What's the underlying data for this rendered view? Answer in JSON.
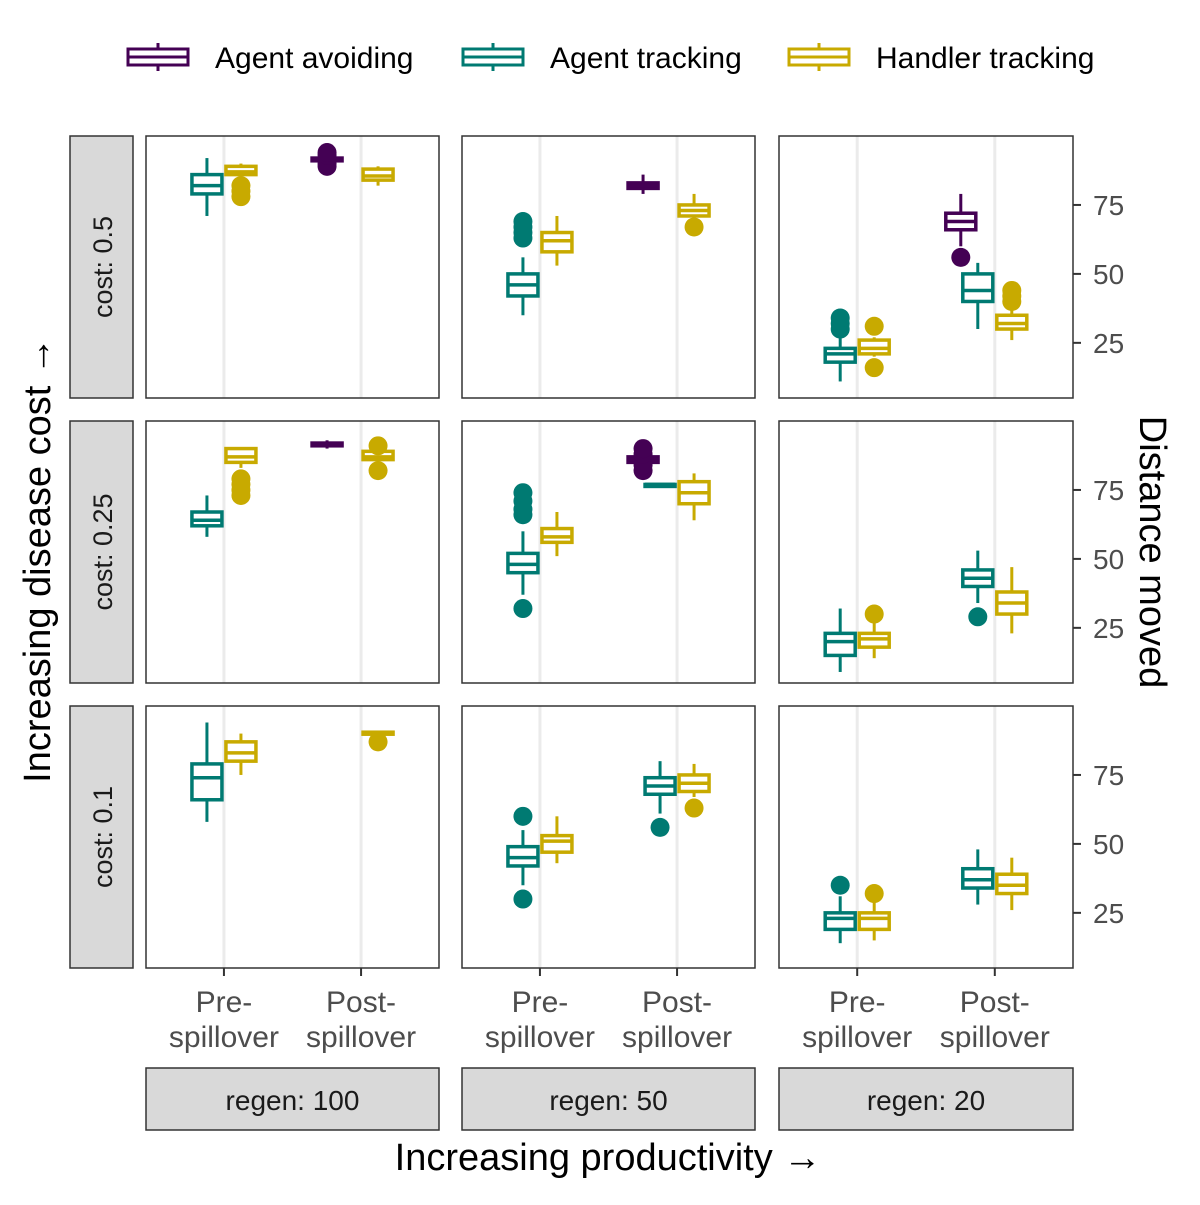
{
  "chart_data": {
    "type": "box",
    "layout": "3x3 facet grid",
    "legend": {
      "position": "top",
      "entries": [
        {
          "name": "Agent avoiding",
          "color": "#440154"
        },
        {
          "name": "Agent tracking",
          "color": "#007a72"
        },
        {
          "name": "Handler tracking",
          "color": "#c8aa00"
        }
      ]
    },
    "xlabel": "Increasing productivity →",
    "ylabel_left": "Increasing disease cost →",
    "ylabel_right": "Distance moved",
    "x_categories": [
      "Pre-\nspillover",
      "Post-\nspillover"
    ],
    "y_range": [
      5,
      100
    ],
    "y_ticks": [
      25,
      50,
      75
    ],
    "grid": "vertical major lines only",
    "col_facets": [
      "regen: 100",
      "regen: 50",
      "regen: 20"
    ],
    "row_facets": [
      "cost: 0.5",
      "cost: 0.25",
      "cost: 0.1"
    ],
    "panels": [
      {
        "row": "cost: 0.5",
        "col": "regen: 100",
        "boxes": [
          {
            "x": "Pre-\nspillover",
            "series": "Agent tracking",
            "min": 71,
            "q1": 79,
            "median": 82,
            "q3": 86,
            "max": 92,
            "outliers": []
          },
          {
            "x": "Pre-\nspillover",
            "series": "Handler tracking",
            "min": 84,
            "q1": 86,
            "median": 87,
            "q3": 89,
            "max": 90,
            "outliers": [
              78,
              80,
              82
            ]
          },
          {
            "x": "Post-\nspillover",
            "series": "Agent avoiding",
            "min": 90,
            "q1": 91,
            "median": 91.5,
            "q3": 92,
            "max": 93,
            "outliers": [
              89,
              90,
              93,
              94
            ]
          },
          {
            "x": "Post-\nspillover",
            "series": "Handler tracking",
            "min": 82,
            "q1": 84,
            "median": 85.5,
            "q3": 88,
            "max": 89,
            "outliers": []
          }
        ]
      },
      {
        "row": "cost: 0.5",
        "col": "regen: 50",
        "boxes": [
          {
            "x": "Pre-\nspillover",
            "series": "Agent tracking",
            "min": 35,
            "q1": 42,
            "median": 46,
            "q3": 50,
            "max": 56,
            "outliers": [
              63,
              65,
              67,
              69
            ]
          },
          {
            "x": "Pre-\nspillover",
            "series": "Handler tracking",
            "min": 53,
            "q1": 58,
            "median": 62,
            "q3": 65,
            "max": 71,
            "outliers": []
          },
          {
            "x": "Post-\nspillover",
            "series": "Agent avoiding",
            "min": 79,
            "q1": 81,
            "median": 82,
            "q3": 83,
            "max": 86,
            "outliers": []
          },
          {
            "x": "Post-\nspillover",
            "series": "Handler tracking",
            "min": 69,
            "q1": 71,
            "median": 73,
            "q3": 75,
            "max": 79,
            "outliers": [
              67
            ]
          }
        ]
      },
      {
        "row": "cost: 0.5",
        "col": "regen: 20",
        "boxes": [
          {
            "x": "Pre-\nspillover",
            "series": "Agent tracking",
            "min": 11,
            "q1": 18,
            "median": 21,
            "q3": 23,
            "max": 28,
            "outliers": [
              30,
              32,
              34
            ]
          },
          {
            "x": "Pre-\nspillover",
            "series": "Handler tracking",
            "min": 20,
            "q1": 21,
            "median": 23,
            "q3": 26,
            "max": 27,
            "outliers": [
              16,
              31
            ]
          },
          {
            "x": "Post-\nspillover",
            "series": "Agent avoiding",
            "min": 60,
            "q1": 66,
            "median": 69,
            "q3": 72,
            "max": 79,
            "outliers": [
              56
            ]
          },
          {
            "x": "Post-\nspillover",
            "series": "Agent tracking",
            "min": 30,
            "q1": 40,
            "median": 44,
            "q3": 50,
            "max": 54,
            "outliers": []
          },
          {
            "x": "Post-\nspillover",
            "series": "Handler tracking",
            "min": 26,
            "q1": 30,
            "median": 32,
            "q3": 35,
            "max": 38,
            "outliers": [
              40,
              42,
              44
            ]
          }
        ]
      },
      {
        "row": "cost: 0.25",
        "col": "regen: 100",
        "boxes": [
          {
            "x": "Pre-\nspillover",
            "series": "Agent tracking",
            "min": 58,
            "q1": 62,
            "median": 64,
            "q3": 67,
            "max": 73,
            "outliers": []
          },
          {
            "x": "Pre-\nspillover",
            "series": "Handler tracking",
            "min": 83,
            "q1": 85,
            "median": 87,
            "q3": 90,
            "max": 90,
            "outliers": [
              73,
              75,
              77,
              79
            ]
          },
          {
            "x": "Post-\nspillover",
            "series": "Agent avoiding",
            "min": 90,
            "q1": 91,
            "median": 91.5,
            "q3": 92,
            "max": 93,
            "outliers": []
          },
          {
            "x": "Post-\nspillover",
            "series": "Handler tracking",
            "min": 84,
            "q1": 86,
            "median": 87,
            "q3": 89,
            "max": 90,
            "outliers": [
              82,
              91
            ]
          }
        ]
      },
      {
        "row": "cost: 0.25",
        "col": "regen: 50",
        "boxes": [
          {
            "x": "Pre-\nspillover",
            "series": "Agent tracking",
            "min": 37,
            "q1": 45,
            "median": 48,
            "q3": 52,
            "max": 60,
            "outliers": [
              32,
              66,
              68,
              71,
              74
            ]
          },
          {
            "x": "Pre-\nspillover",
            "series": "Handler tracking",
            "min": 51,
            "q1": 56,
            "median": 58,
            "q3": 61,
            "max": 67,
            "outliers": []
          },
          {
            "x": "Post-\nspillover",
            "series": "Agent avoiding",
            "min": 84,
            "q1": 85,
            "median": 86,
            "q3": 87,
            "max": 88,
            "outliers": [
              82,
              84,
              88,
              90
            ]
          },
          {
            "x": "Post-\nspillover",
            "series": "Agent tracking",
            "min": 77,
            "q1": 77,
            "median": 77,
            "q3": 77,
            "max": 77,
            "outliers": []
          },
          {
            "x": "Post-\nspillover",
            "series": "Handler tracking",
            "min": 64,
            "q1": 70,
            "median": 74,
            "q3": 78,
            "max": 81,
            "outliers": []
          }
        ]
      },
      {
        "row": "cost: 0.25",
        "col": "regen: 20",
        "boxes": [
          {
            "x": "Pre-\nspillover",
            "series": "Agent tracking",
            "min": 9,
            "q1": 15,
            "median": 20,
            "q3": 23,
            "max": 32,
            "outliers": []
          },
          {
            "x": "Pre-\nspillover",
            "series": "Handler tracking",
            "min": 14,
            "q1": 18,
            "median": 21,
            "q3": 23,
            "max": 27,
            "outliers": [
              30
            ]
          },
          {
            "x": "Post-\nspillover",
            "series": "Agent tracking",
            "min": 34,
            "q1": 40,
            "median": 43,
            "q3": 46,
            "max": 53,
            "outliers": [
              29
            ]
          },
          {
            "x": "Post-\nspillover",
            "series": "Handler tracking",
            "min": 23,
            "q1": 30,
            "median": 34,
            "q3": 38,
            "max": 47,
            "outliers": []
          }
        ]
      },
      {
        "row": "cost: 0.1",
        "col": "regen: 100",
        "boxes": [
          {
            "x": "Pre-\nspillover",
            "series": "Agent tracking",
            "min": 58,
            "q1": 66,
            "median": 74,
            "q3": 79,
            "max": 94,
            "outliers": []
          },
          {
            "x": "Pre-\nspillover",
            "series": "Handler tracking",
            "min": 75,
            "q1": 80,
            "median": 83,
            "q3": 87,
            "max": 90,
            "outliers": []
          },
          {
            "x": "Post-\nspillover",
            "series": "Handler tracking",
            "min": 89,
            "q1": 90,
            "median": 90,
            "q3": 90.5,
            "max": 91,
            "outliers": [
              87
            ]
          }
        ]
      },
      {
        "row": "cost: 0.1",
        "col": "regen: 50",
        "boxes": [
          {
            "x": "Pre-\nspillover",
            "series": "Agent tracking",
            "min": 35,
            "q1": 42,
            "median": 45,
            "q3": 49,
            "max": 55,
            "outliers": [
              30,
              60
            ]
          },
          {
            "x": "Pre-\nspillover",
            "series": "Handler tracking",
            "min": 43,
            "q1": 47,
            "median": 51,
            "q3": 53,
            "max": 60,
            "outliers": []
          },
          {
            "x": "Post-\nspillover",
            "series": "Agent tracking",
            "min": 61,
            "q1": 68,
            "median": 71,
            "q3": 74,
            "max": 80,
            "outliers": [
              56
            ]
          },
          {
            "x": "Post-\nspillover",
            "series": "Handler tracking",
            "min": 67,
            "q1": 69,
            "median": 72,
            "q3": 75,
            "max": 79,
            "outliers": [
              63
            ]
          }
        ]
      },
      {
        "row": "cost: 0.1",
        "col": "regen: 20",
        "boxes": [
          {
            "x": "Pre-\nspillover",
            "series": "Agent tracking",
            "min": 14,
            "q1": 19,
            "median": 23,
            "q3": 25,
            "max": 31,
            "outliers": [
              35
            ]
          },
          {
            "x": "Pre-\nspillover",
            "series": "Handler tracking",
            "min": 15,
            "q1": 19,
            "median": 23,
            "q3": 25,
            "max": 29,
            "outliers": [
              32
            ]
          },
          {
            "x": "Post-\nspillover",
            "series": "Agent tracking",
            "min": 28,
            "q1": 34,
            "median": 37,
            "q3": 41,
            "max": 48,
            "outliers": []
          },
          {
            "x": "Post-\nspillover",
            "series": "Handler tracking",
            "min": 26,
            "q1": 32,
            "median": 35,
            "q3": 39,
            "max": 45,
            "outliers": []
          }
        ]
      }
    ]
  }
}
